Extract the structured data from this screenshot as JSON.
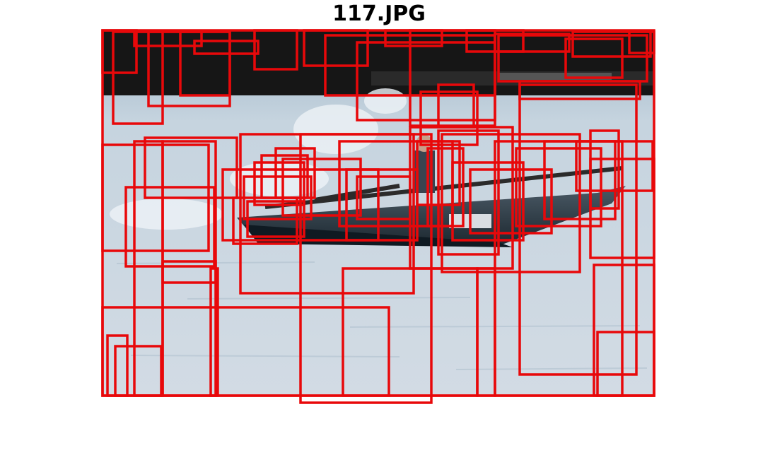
{
  "figure": {
    "title": "117.JPG"
  },
  "colors": {
    "box_stroke": "#e8080a",
    "background": "#ffffff",
    "water": "#cbd6e0",
    "dock_dark": "#141414",
    "boat_hull": "#1e2a33"
  },
  "photo": {
    "subject": "rowing-boat-on-water"
  },
  "detections": {
    "count": 63
  }
}
